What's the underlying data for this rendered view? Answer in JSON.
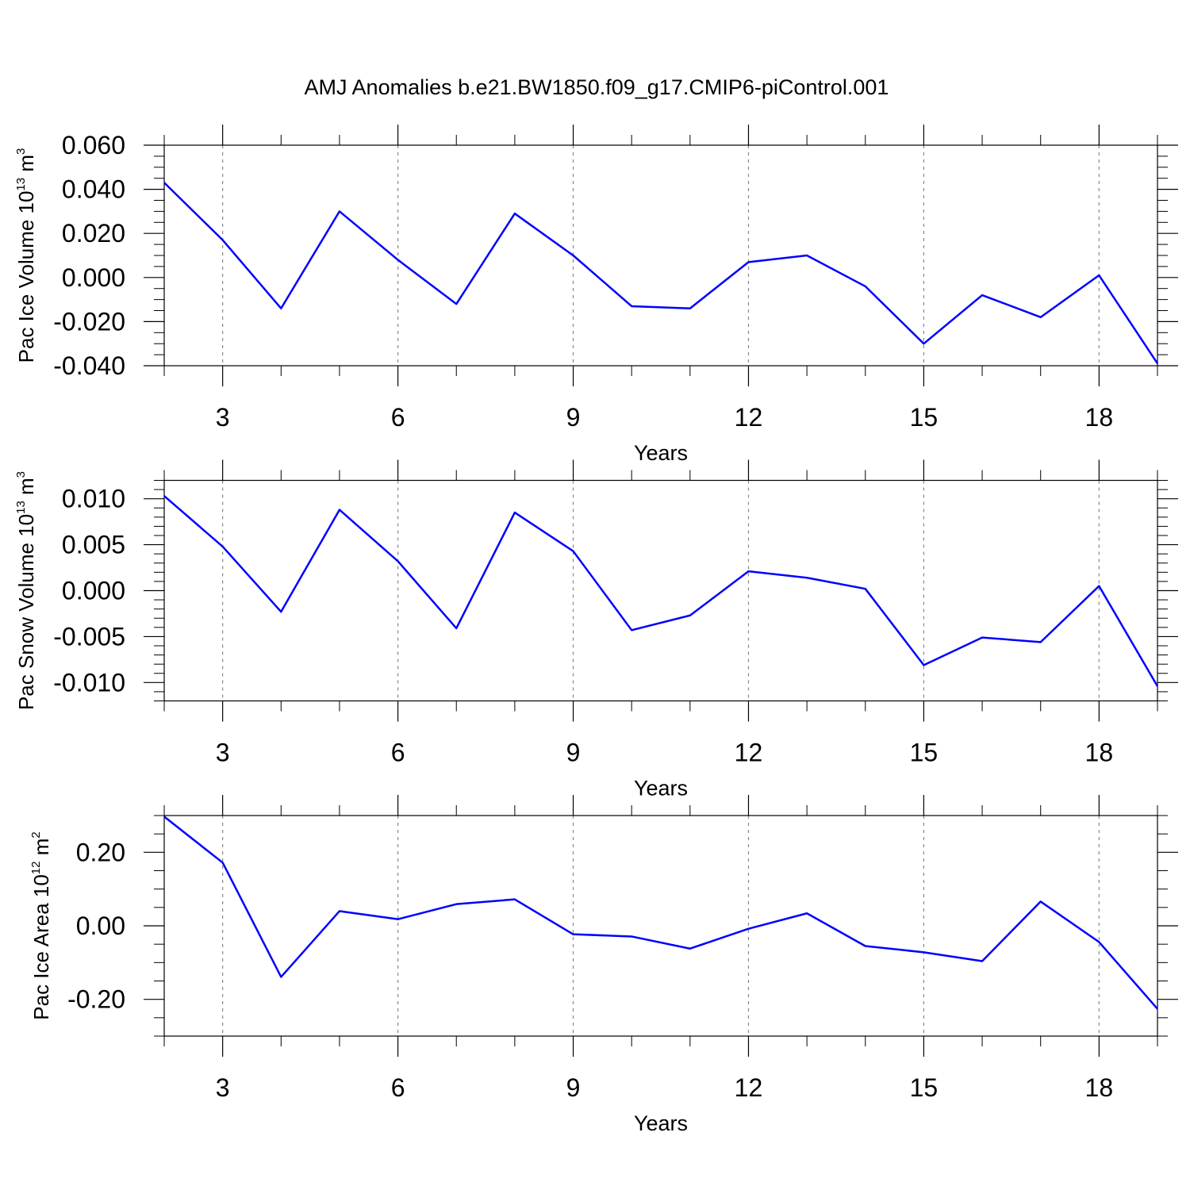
{
  "title": "AMJ Anomalies b.e21.BW1850.f09_g17.CMIP6-piControl.001",
  "chart_data": [
    {
      "type": "line",
      "ylabel": [
        "Pac Ice Volume 10",
        "13",
        " m",
        "3"
      ],
      "xlabel": "Years",
      "x": [
        2,
        3,
        4,
        5,
        6,
        7,
        8,
        9,
        10,
        11,
        12,
        13,
        14,
        15,
        16,
        17,
        18,
        19
      ],
      "series": [
        {
          "color": "#0000ff",
          "values": [
            0.043,
            0.017,
            -0.014,
            0.03,
            0.008,
            -0.012,
            0.029,
            0.01,
            -0.013,
            -0.014,
            0.007,
            0.01,
            -0.004,
            -0.03,
            -0.008,
            -0.018,
            0.001,
            -0.039
          ]
        }
      ],
      "xlim": [
        2,
        19
      ],
      "xticks": [
        3,
        6,
        9,
        12,
        15,
        18
      ],
      "xminorticks": [
        2,
        4,
        5,
        7,
        8,
        10,
        11,
        13,
        14,
        16,
        17,
        19
      ],
      "ylim": [
        -0.04,
        0.06
      ],
      "yticks": [
        {
          "value": -0.04,
          "label": "-0.040"
        },
        {
          "value": -0.02,
          "label": "-0.020"
        },
        {
          "value": 0,
          "label": "0.000"
        },
        {
          "value": 0.02,
          "label": "0.020"
        },
        {
          "value": 0.04,
          "label": "0.040"
        },
        {
          "value": 0.06,
          "label": "0.060"
        }
      ],
      "yminorticks": [
        -0.035,
        -0.03,
        -0.025,
        -0.015,
        -0.01,
        -0.005,
        0.005,
        0.01,
        0.015,
        0.025,
        0.03,
        0.035,
        0.045,
        0.05,
        0.055
      ],
      "grid": "x"
    },
    {
      "type": "line",
      "ylabel": [
        "Pac Snow Volume 10",
        "13",
        " m",
        "3"
      ],
      "xlabel": "Years",
      "x": [
        2,
        3,
        4,
        5,
        6,
        7,
        8,
        9,
        10,
        11,
        12,
        13,
        14,
        15,
        16,
        17,
        18,
        19
      ],
      "series": [
        {
          "color": "#0000ff",
          "values": [
            0.0103,
            0.0048,
            -0.0023,
            0.0088,
            0.0032,
            -0.0041,
            0.0085,
            0.0043,
            -0.0043,
            -0.0027,
            0.0021,
            0.0014,
            0.0002,
            -0.0081,
            -0.0051,
            -0.0056,
            0.0005,
            -0.0104
          ]
        }
      ],
      "xlim": [
        2,
        19
      ],
      "xticks": [
        3,
        6,
        9,
        12,
        15,
        18
      ],
      "xminorticks": [
        2,
        4,
        5,
        7,
        8,
        10,
        11,
        13,
        14,
        16,
        17,
        19
      ],
      "ylim": [
        -0.012,
        0.012
      ],
      "yticks": [
        {
          "value": -0.01,
          "label": "-0.010"
        },
        {
          "value": -0.005,
          "label": "-0.005"
        },
        {
          "value": 0,
          "label": "0.000"
        },
        {
          "value": 0.005,
          "label": "0.005"
        },
        {
          "value": 0.01,
          "label": "0.010"
        }
      ],
      "yminorticks": [
        -0.012,
        -0.011,
        -0.009,
        -0.008,
        -0.007,
        -0.006,
        -0.004,
        -0.003,
        -0.002,
        -0.001,
        0.001,
        0.002,
        0.003,
        0.004,
        0.006,
        0.007,
        0.008,
        0.009,
        0.011,
        0.012
      ],
      "grid": "x"
    },
    {
      "type": "line",
      "ylabel": [
        "Pac Ice Area 10",
        "12",
        " m",
        "2"
      ],
      "xlabel": "Years",
      "x": [
        2,
        3,
        4,
        5,
        6,
        7,
        8,
        9,
        10,
        11,
        12,
        13,
        14,
        15,
        16,
        17,
        18,
        19
      ],
      "series": [
        {
          "color": "#0000ff",
          "values": [
            0.297,
            0.172,
            -0.139,
            0.04,
            0.018,
            0.059,
            0.072,
            -0.023,
            -0.029,
            -0.062,
            -0.008,
            0.034,
            -0.055,
            -0.072,
            -0.096,
            0.066,
            -0.044,
            -0.226
          ]
        }
      ],
      "xlim": [
        2,
        19
      ],
      "xticks": [
        3,
        6,
        9,
        12,
        15,
        18
      ],
      "xminorticks": [
        2,
        4,
        5,
        7,
        8,
        10,
        11,
        13,
        14,
        16,
        17,
        19
      ],
      "ylim": [
        -0.3,
        0.3
      ],
      "yticks": [
        {
          "value": -0.2,
          "label": "-0.20"
        },
        {
          "value": 0,
          "label": "0.00"
        },
        {
          "value": 0.2,
          "label": "0.20"
        }
      ],
      "yminorticks": [
        -0.3,
        -0.25,
        -0.15,
        -0.1,
        -0.05,
        0.05,
        0.1,
        0.15,
        0.25,
        0.3
      ],
      "grid": "x"
    }
  ]
}
